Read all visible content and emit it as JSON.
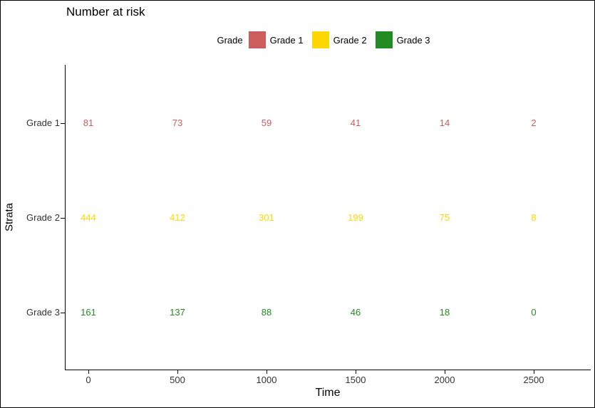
{
  "title": "Number at risk",
  "legend": {
    "title": "Grade",
    "items": [
      {
        "label": "Grade 1",
        "color": "#CD5C5C"
      },
      {
        "label": "Grade 2",
        "color": "#FFD700"
      },
      {
        "label": "Grade 3",
        "color": "#228B22"
      }
    ]
  },
  "axes": {
    "x_title": "Time",
    "y_title": "Strata",
    "x_tick_labels": [
      "0",
      "500",
      "1000",
      "1500",
      "2000",
      "2500"
    ],
    "y_tick_labels": [
      "Grade 1",
      "Grade 2",
      "Grade 3"
    ]
  },
  "chart_data": {
    "type": "table",
    "title": "Number at risk",
    "subtitle": "",
    "xlabel": "Time",
    "ylabel": "Strata",
    "x": [
      0,
      500,
      1000,
      1500,
      2000,
      2500
    ],
    "categories": [
      "Grade 1",
      "Grade 2",
      "Grade 3"
    ],
    "series": [
      {
        "name": "Grade 1",
        "color": "#CD5C5C",
        "values": [
          81,
          73,
          59,
          41,
          14,
          2
        ]
      },
      {
        "name": "Grade 2",
        "color": "#FFD700",
        "values": [
          444,
          412,
          301,
          199,
          75,
          8
        ]
      },
      {
        "name": "Grade 3",
        "color": "#228B22",
        "values": [
          161,
          137,
          88,
          46,
          18,
          0
        ]
      }
    ],
    "legend_title": "Grade",
    "legend_position": "top",
    "grid": false,
    "xlim": [
      -125,
      2765
    ]
  }
}
